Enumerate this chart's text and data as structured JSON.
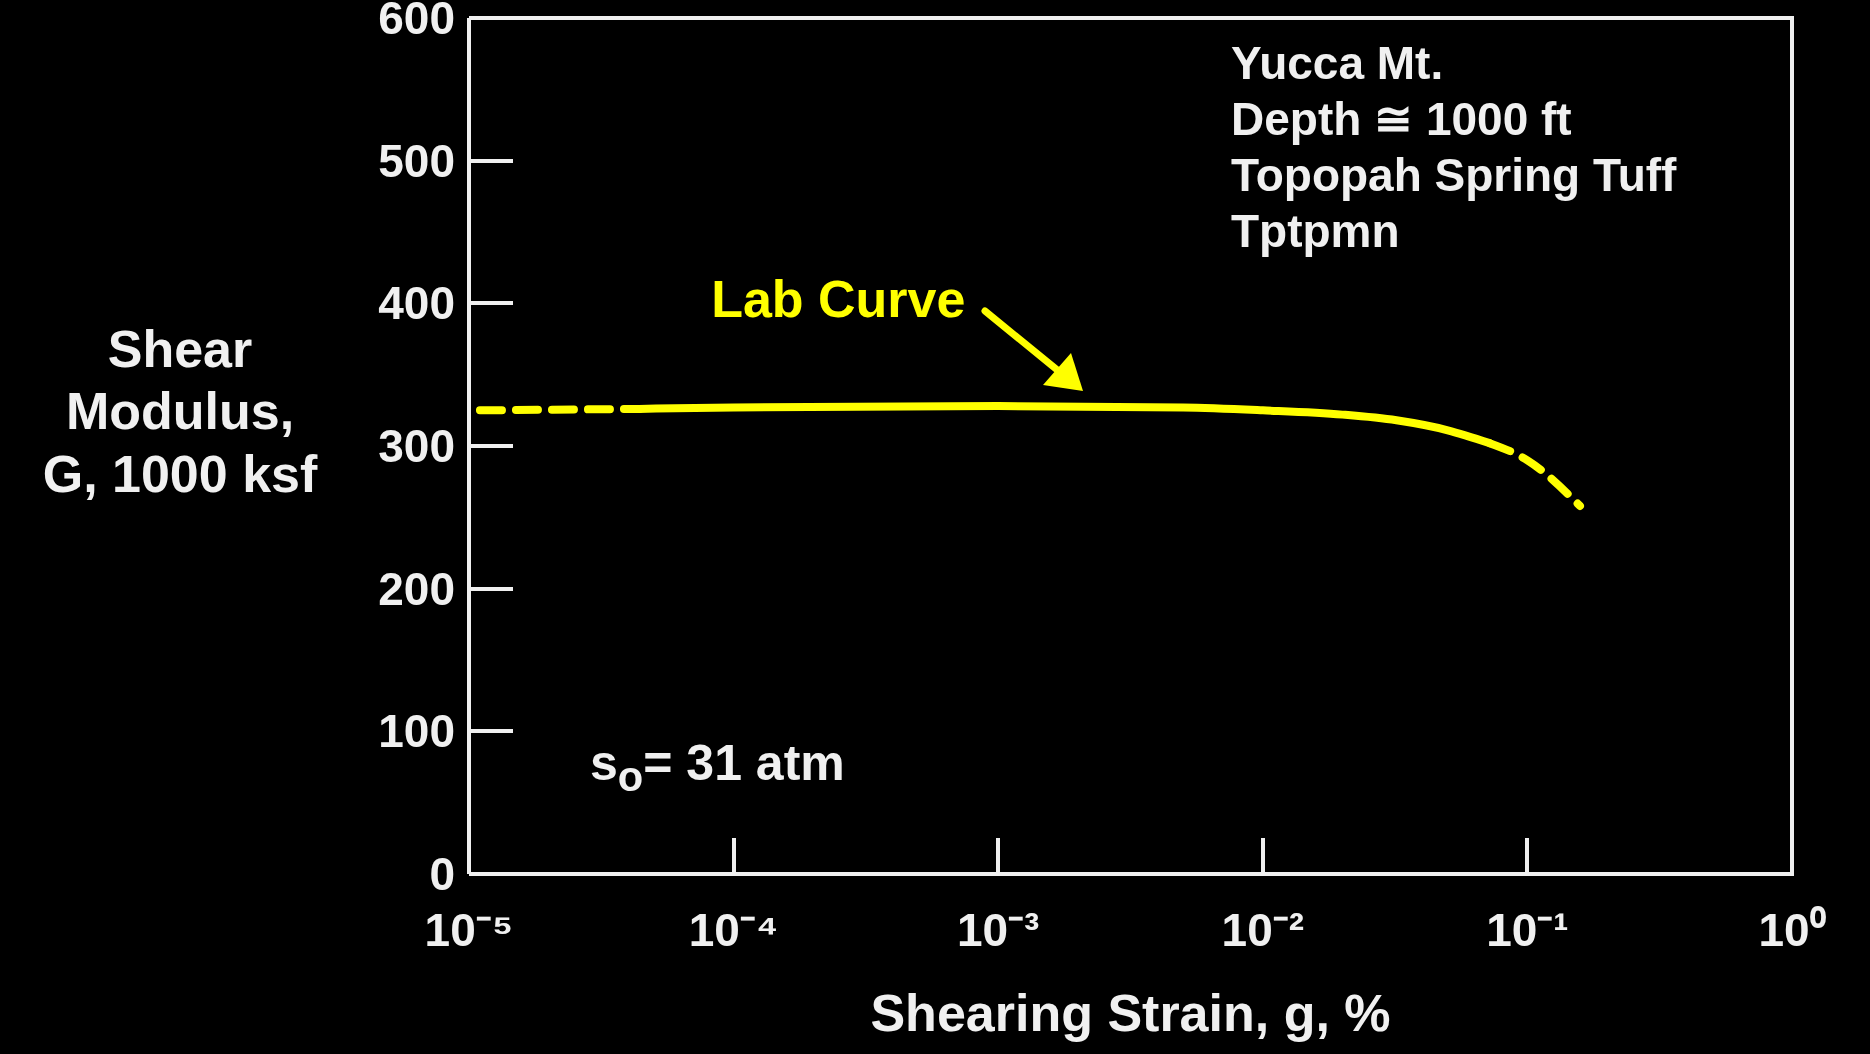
{
  "chart_data": {
    "type": "line",
    "xlabel": "Shearing Strain, g, %",
    "ylabel": "Shear\nModulus,\nG, 1000 ksf",
    "log": "x",
    "xlim": [
      1e-05,
      1
    ],
    "xticks": [
      {
        "value": 1e-05,
        "label": "10⁻⁵"
      },
      {
        "value": 0.0001,
        "label": "10⁻⁴"
      },
      {
        "value": 0.001,
        "label": "10⁻³"
      },
      {
        "value": 0.01,
        "label": "10⁻²"
      },
      {
        "value": 0.1,
        "label": "10⁻¹"
      },
      {
        "value": 1,
        "label": "10⁰"
      }
    ],
    "ylim": [
      0,
      600
    ],
    "yticks": [
      0,
      100,
      200,
      300,
      400,
      500,
      600
    ],
    "marker": "none",
    "series": [
      {
        "color": "#ffff00",
        "line_style": "dashed",
        "x": [
          1.1e-05,
          4.4e-05
        ],
        "values": [
          325,
          326
        ]
      },
      {
        "color": "#ffff00",
        "line_style": "solid",
        "x": [
          4.4e-05,
          0.0001,
          0.001,
          0.005,
          0.01,
          0.02,
          0.032,
          0.05,
          0.072
        ],
        "values": [
          326,
          327,
          328,
          327,
          325,
          322,
          318,
          311,
          302
        ]
      },
      {
        "color": "#ffff00",
        "line_style": "dashed",
        "x": [
          0.072,
          0.1,
          0.158
        ],
        "values": [
          302,
          290,
          258
        ]
      }
    ],
    "annotations": [
      "Yucca Mt.",
      "Depth ≅ 1000 ft",
      "Topopah Spring Tuff",
      "Tptpmn",
      "s$_{o}$= 31 atm",
      {
        "text": "Lab Curve",
        "x": 0.0021,
        "y": 330
      }
    ]
  }
}
